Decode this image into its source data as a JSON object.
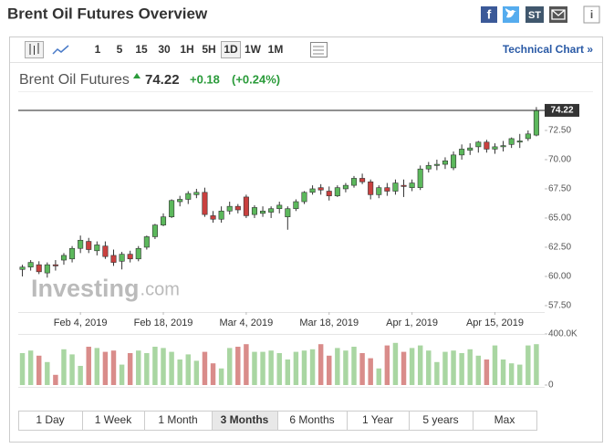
{
  "header": {
    "title": "Brent Oil Futures Overview",
    "stocktwits_label": "ST"
  },
  "toolbar": {
    "intervals": [
      "1",
      "5",
      "15",
      "30",
      "1H",
      "5H",
      "1D",
      "1W",
      "1M"
    ],
    "selected": 6,
    "technical_link": "Technical Chart »"
  },
  "quote": {
    "name": "Brent Oil Futures",
    "change": "+0.18",
    "change_percent": "(+0.24%)"
  },
  "periods": {
    "items": [
      "1 Day",
      "1 Week",
      "1 Month",
      "3 Months",
      "6 Months",
      "1 Year",
      "5 years",
      "Max"
    ],
    "selected": 3
  },
  "chart_data": {
    "type": "candlestick",
    "watermark": {
      "brand": "Investing",
      "suffix": ".com"
    },
    "last_price": 74.22,
    "up_color": "#5cb85c",
    "down_color": "#c9403f",
    "up_volume_color": "#a9d6a2",
    "down_volume_color": "#d98c8a",
    "open": [
      60.6,
      60.8,
      61.0,
      60.3,
      61.0,
      61.4,
      61.5,
      62.4,
      63.0,
      62.2,
      62.6,
      61.8,
      61.3,
      61.9,
      61.5,
      62.5,
      63.4,
      64.4,
      65.1,
      66.4,
      66.6,
      67.0,
      67.2,
      65.2,
      64.9,
      65.6,
      66.0,
      66.8,
      65.3,
      65.4,
      65.5,
      65.8,
      65.1,
      65.8,
      66.4,
      67.2,
      67.6,
      67.3,
      66.9,
      67.5,
      67.8,
      68.4,
      68.1,
      67.0,
      67.6,
      67.3,
      67.8,
      67.6,
      67.6,
      69.2,
      69.5,
      69.6,
      69.3,
      70.4,
      70.8,
      71.1,
      71.5,
      70.9,
      71.1,
      71.3,
      71.5,
      71.8,
      72.1
    ],
    "high": [
      61.0,
      61.4,
      61.3,
      61.2,
      61.4,
      62.0,
      62.6,
      63.5,
      63.3,
      63.0,
      63.0,
      62.3,
      62.1,
      62.2,
      62.6,
      63.5,
      64.5,
      65.4,
      66.6,
      66.9,
      67.3,
      67.5,
      67.6,
      65.6,
      66.0,
      66.4,
      66.2,
      67.0,
      66.1,
      66.0,
      66.0,
      66.4,
      66.0,
      66.6,
      67.3,
      67.8,
      67.9,
      67.7,
      67.8,
      68.0,
      68.6,
      68.8,
      68.3,
      67.8,
      68.0,
      68.3,
      68.3,
      68.3,
      69.5,
      69.8,
      70.0,
      70.2,
      70.7,
      71.3,
      71.4,
      71.6,
      71.7,
      71.4,
      71.6,
      71.9,
      72.2,
      72.5,
      74.5
    ],
    "low": [
      60.0,
      60.5,
      60.2,
      59.9,
      60.5,
      61.0,
      61.2,
      62.0,
      62.0,
      61.8,
      61.5,
      60.9,
      60.6,
      61.2,
      61.3,
      62.3,
      63.2,
      64.3,
      65.0,
      66.0,
      66.2,
      66.7,
      65.1,
      64.6,
      64.6,
      65.3,
      65.4,
      65.0,
      65.0,
      65.1,
      65.0,
      65.4,
      64.0,
      65.6,
      66.2,
      67.0,
      67.0,
      66.5,
      66.8,
      67.2,
      67.6,
      67.9,
      66.6,
      66.7,
      66.9,
      67.0,
      66.8,
      67.3,
      67.4,
      68.9,
      69.1,
      69.2,
      69.1,
      70.0,
      70.4,
      70.6,
      70.6,
      70.5,
      70.7,
      71.0,
      71.0,
      71.6,
      72.0
    ],
    "close": [
      60.8,
      61.2,
      60.4,
      61.0,
      60.9,
      61.8,
      62.4,
      63.1,
      62.3,
      62.7,
      61.7,
      61.2,
      61.9,
      61.5,
      62.4,
      63.4,
      64.4,
      65.1,
      66.5,
      66.6,
      67.1,
      67.2,
      65.3,
      64.9,
      65.6,
      66.0,
      65.7,
      65.2,
      65.9,
      65.6,
      65.8,
      66.1,
      65.8,
      66.4,
      67.2,
      67.5,
      67.4,
      66.9,
      67.6,
      67.8,
      68.4,
      68.1,
      67.0,
      67.6,
      67.3,
      68.0,
      67.7,
      68.0,
      69.2,
      69.5,
      69.6,
      69.9,
      70.4,
      70.9,
      71.0,
      71.5,
      70.9,
      71.1,
      71.2,
      71.8,
      71.6,
      72.2,
      74.22
    ],
    "volume": [
      250000,
      270000,
      230000,
      180000,
      80000,
      280000,
      240000,
      150000,
      300000,
      290000,
      260000,
      270000,
      160000,
      250000,
      270000,
      250000,
      300000,
      290000,
      260000,
      200000,
      240000,
      190000,
      260000,
      170000,
      130000,
      290000,
      300000,
      320000,
      260000,
      260000,
      270000,
      250000,
      200000,
      260000,
      270000,
      280000,
      320000,
      230000,
      290000,
      270000,
      300000,
      250000,
      210000,
      130000,
      310000,
      330000,
      260000,
      290000,
      310000,
      270000,
      180000,
      260000,
      270000,
      250000,
      280000,
      230000,
      200000,
      310000,
      200000,
      170000,
      160000,
      310000,
      320000
    ],
    "ylim": [
      56.7,
      75.2
    ],
    "yticks": [
      {
        "value": 57.5,
        "label": "57.50"
      },
      {
        "value": 60,
        "label": "60.00"
      },
      {
        "value": 62.5,
        "label": "62.50"
      },
      {
        "value": 65,
        "label": "65.00"
      },
      {
        "value": 67.5,
        "label": "67.50"
      },
      {
        "value": 70,
        "label": "70.00"
      },
      {
        "value": 72.5,
        "label": "72.50"
      }
    ],
    "xlim": [
      -0.5,
      63
    ],
    "xticks": [
      {
        "value": 7,
        "label": "Feb 4, 2019"
      },
      {
        "value": 17,
        "label": "Feb 18, 2019"
      },
      {
        "value": 27,
        "label": "Mar 4, 2019"
      },
      {
        "value": 37,
        "label": "Mar 18, 2019"
      },
      {
        "value": 47,
        "label": "Apr 1, 2019"
      },
      {
        "value": 57,
        "label": "Apr 15, 2019"
      }
    ],
    "y2lim": [
      0,
      400000
    ],
    "y2ticks": [
      {
        "value": 0,
        "label": "0"
      },
      {
        "value": 400000,
        "label": "400.0K"
      }
    ]
  }
}
